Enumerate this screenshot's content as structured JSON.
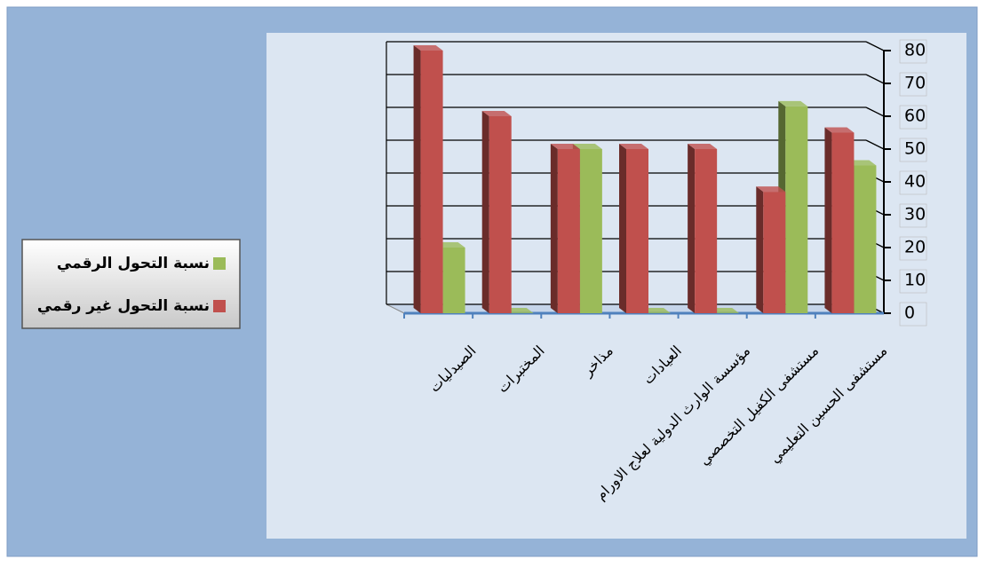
{
  "chart_data": {
    "type": "bar3d",
    "categories": [
      "الصيدليات",
      "المختبرات",
      "مذاخر",
      "العيادات",
      "مؤسسة الوارث الدولية لعلاج الاورام",
      "مستشفى الكفيل التخصصي",
      "مستشفى الحسين التعليمي"
    ],
    "series": [
      {
        "name": "نسبة التحول الرقمي",
        "color": "#9bbb59",
        "values": [
          20,
          0,
          50,
          0,
          0,
          63,
          45
        ]
      },
      {
        "name": "نسبة التحول غير رقمي",
        "color": "#c0504d",
        "values": [
          80,
          60,
          50,
          50,
          50,
          37,
          55
        ]
      }
    ],
    "ylim": [
      0,
      80
    ],
    "yticks": [
      0,
      10,
      20,
      30,
      40,
      50,
      60,
      70,
      80
    ],
    "grid": true,
    "legend": "left"
  }
}
